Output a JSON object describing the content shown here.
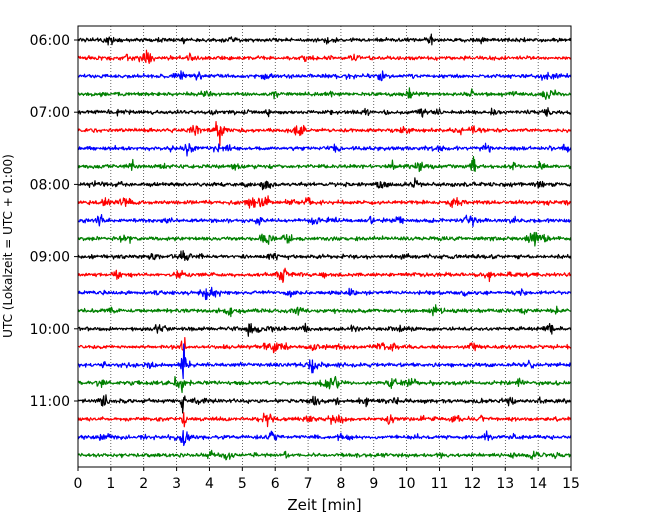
{
  "chart_data": {
    "type": "line",
    "title": "",
    "xlabel": "Zeit  [min]",
    "ylabel": "UTC (Lokalzeit = UTC + 01:00)",
    "xlim": [
      0,
      15
    ],
    "x_ticks": [
      0,
      1,
      2,
      3,
      4,
      5,
      6,
      7,
      8,
      9,
      10,
      11,
      12,
      13,
      14,
      15
    ],
    "y_ticks": [
      "06:00",
      "07:00",
      "08:00",
      "09:00",
      "10:00",
      "11:00"
    ],
    "y_start": "06:00",
    "trace_interval_min": 15,
    "trace_count": 24,
    "colors": [
      "#000000",
      "#ff0000",
      "#0000ff",
      "#008000"
    ],
    "grid": "vertical-dotted",
    "events": [
      {
        "row": 16,
        "minute": 5.2,
        "strength": 1.5
      },
      {
        "row": 17,
        "minute": 3.2,
        "strength": 4
      },
      {
        "row": 18,
        "minute": 3.2,
        "strength": 4
      },
      {
        "row": 19,
        "minute": 3.2,
        "strength": 3.5
      },
      {
        "row": 20,
        "minute": 3.2,
        "strength": 3
      },
      {
        "row": 21,
        "minute": 3.2,
        "strength": 3.5
      },
      {
        "row": 22,
        "minute": 3.2,
        "strength": 4
      },
      {
        "row": 13,
        "minute": 13.1,
        "strength": 1.3
      }
    ]
  }
}
